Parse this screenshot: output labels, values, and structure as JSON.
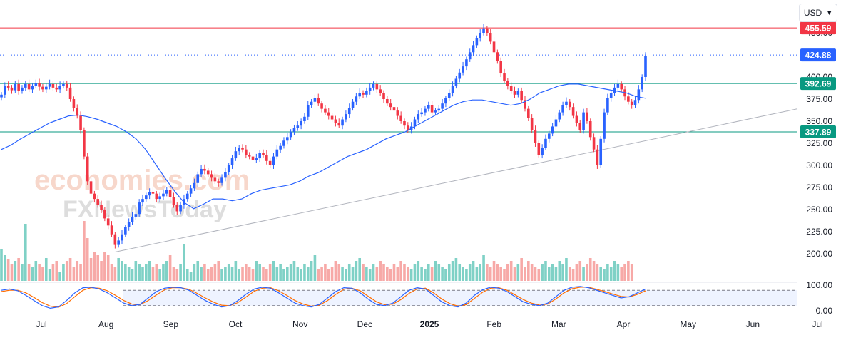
{
  "currency_selector": {
    "label": "USD"
  },
  "watermark": {
    "line1": "economies.com",
    "line2": "FXNewsToday"
  },
  "chart_data": [
    {
      "type": "candlestick",
      "y_ticks": [
        "200.00",
        "225.00",
        "250.00",
        "275.00",
        "300.00",
        "325.00",
        "350.00",
        "375.00",
        "400.00",
        "425.00",
        "450.00"
      ],
      "ylim": [
        175,
        470
      ],
      "x_ticks": [
        {
          "label": "Jul",
          "bold": false
        },
        {
          "label": "Aug",
          "bold": false
        },
        {
          "label": "Sep",
          "bold": false
        },
        {
          "label": "Oct",
          "bold": false
        },
        {
          "label": "Nov",
          "bold": false
        },
        {
          "label": "Dec",
          "bold": false
        },
        {
          "label": "2025",
          "bold": true
        },
        {
          "label": "Feb",
          "bold": false
        },
        {
          "label": "Mar",
          "bold": false
        },
        {
          "label": "Apr",
          "bold": false
        },
        {
          "label": "May",
          "bold": false
        },
        {
          "label": "Jun",
          "bold": false
        },
        {
          "label": "Jul",
          "bold": false
        }
      ],
      "price_levels": [
        {
          "label": "455.59",
          "value": 455.59,
          "color": "#f23645",
          "style": "solid"
        },
        {
          "label": "424.88",
          "value": 424.88,
          "color": "#2962ff",
          "style": "dotted"
        },
        {
          "label": "392.69",
          "value": 392.69,
          "color": "#089981",
          "style": "solid"
        },
        {
          "label": "337.89",
          "value": 337.89,
          "color": "#089981",
          "style": "solid"
        }
      ],
      "close_series": [
        380,
        390,
        388,
        385,
        392,
        384,
        388,
        392,
        386,
        390,
        393,
        389,
        386,
        389,
        392,
        388,
        386,
        390,
        392,
        388,
        375,
        365,
        356,
        340,
        310,
        282,
        268,
        262,
        255,
        250,
        240,
        232,
        222,
        210,
        215,
        222,
        230,
        236,
        242,
        245,
        258,
        262,
        266,
        270,
        268,
        262,
        265,
        268,
        272,
        264,
        255,
        248,
        255,
        262,
        268,
        274,
        280,
        290,
        296,
        294,
        290,
        286,
        282,
        280,
        286,
        292,
        300,
        308,
        316,
        320,
        318,
        312,
        310,
        306,
        308,
        314,
        312,
        305,
        300,
        310,
        318,
        322,
        328,
        332,
        338,
        342,
        345,
        350,
        355,
        368,
        372,
        376,
        370,
        364,
        360,
        356,
        352,
        348,
        345,
        352,
        358,
        365,
        372,
        378,
        382,
        380,
        384,
        388,
        392,
        386,
        382,
        375,
        370,
        366,
        362,
        356,
        350,
        345,
        340,
        344,
        352,
        358,
        360,
        364,
        368,
        360,
        362,
        364,
        370,
        376,
        382,
        390,
        398,
        405,
        412,
        420,
        428,
        436,
        444,
        450,
        455,
        450,
        440,
        428,
        418,
        404,
        396,
        390,
        384,
        380,
        384,
        374,
        364,
        354,
        340,
        325,
        312,
        320,
        330,
        336,
        344,
        352,
        360,
        368,
        372,
        366,
        356,
        348,
        340,
        360,
        350,
        332,
        318,
        300,
        330,
        360,
        376,
        382,
        388,
        392,
        386,
        378,
        372,
        368,
        374,
        386,
        400,
        424
      ],
      "ma_series": [
        318,
        323,
        330,
        336,
        342,
        348,
        352,
        356,
        357,
        355,
        352,
        348,
        344,
        338,
        330,
        318,
        302,
        286,
        271,
        258,
        251,
        256,
        262,
        262,
        260,
        262,
        268,
        272,
        274,
        276,
        278,
        282,
        288,
        292,
        298,
        304,
        310,
        314,
        318,
        324,
        330,
        334,
        338,
        344,
        350,
        356,
        362,
        368,
        372,
        374,
        374,
        372,
        370,
        368,
        370,
        375,
        382,
        386,
        390,
        392,
        392,
        390,
        388,
        386,
        384,
        382,
        378,
        376
      ],
      "volume_series": [
        22,
        18,
        15,
        12,
        14,
        16,
        12,
        40,
        12,
        10,
        14,
        12,
        10,
        16,
        8,
        12,
        14,
        6,
        12,
        14,
        16,
        10,
        14,
        12,
        42,
        30,
        16,
        20,
        18,
        14,
        20,
        18,
        12,
        10,
        16,
        14,
        12,
        10,
        8,
        14,
        12,
        10,
        12,
        14,
        10,
        12,
        8,
        12,
        14,
        18,
        10,
        8,
        12,
        26,
        8,
        6,
        12,
        14,
        10,
        12,
        8,
        10,
        12,
        14,
        8,
        10,
        12,
        10,
        14,
        8,
        10,
        12,
        10,
        8,
        14,
        12,
        10,
        8,
        12,
        14,
        10,
        12,
        8,
        10,
        12,
        14,
        10,
        8,
        12,
        10,
        14,
        18,
        8,
        10,
        12,
        8,
        10,
        14,
        12,
        10,
        8,
        12,
        10,
        14,
        16,
        12,
        10,
        8,
        12,
        10,
        14,
        12,
        10,
        8,
        12,
        10,
        14,
        12,
        10,
        8,
        12,
        14,
        10,
        8,
        12,
        10,
        14,
        12,
        10,
        8,
        12,
        14,
        16,
        12,
        10,
        8,
        12,
        14,
        10,
        12,
        18,
        12,
        10,
        14,
        12,
        10,
        8,
        12,
        14,
        10,
        12,
        16,
        10,
        14,
        12,
        10,
        8,
        12,
        14,
        10,
        12,
        10,
        14,
        12,
        16,
        10,
        8,
        12,
        14,
        10,
        12,
        16,
        14,
        12,
        10,
        8,
        12,
        10,
        14,
        12,
        10,
        12,
        14,
        12
      ]
    },
    {
      "type": "line",
      "name_hidden": true,
      "y_ticks": [
        "100.00",
        "0.00"
      ],
      "ylim": [
        0,
        100
      ],
      "k_series": [
        80,
        85,
        78,
        60,
        40,
        20,
        10,
        15,
        40,
        70,
        90,
        92,
        85,
        70,
        50,
        30,
        20,
        25,
        50,
        75,
        88,
        92,
        90,
        80,
        60,
        40,
        25,
        15,
        20,
        40,
        65,
        85,
        92,
        88,
        70,
        50,
        30,
        20,
        15,
        25,
        50,
        75,
        90,
        88,
        70,
        45,
        25,
        20,
        30,
        55,
        80,
        90,
        85,
        60,
        35,
        20,
        15,
        30,
        60,
        82,
        92,
        88,
        75,
        55,
        35,
        25,
        20,
        30,
        55,
        80,
        92,
        95,
        90,
        80,
        70,
        60,
        50,
        55,
        70,
        85
      ],
      "d_series": [
        75,
        80,
        80,
        70,
        52,
        32,
        18,
        14,
        28,
        55,
        80,
        90,
        88,
        78,
        60,
        40,
        26,
        24,
        40,
        62,
        82,
        90,
        90,
        84,
        68,
        50,
        34,
        22,
        20,
        32,
        54,
        76,
        88,
        90,
        78,
        60,
        40,
        26,
        18,
        22,
        40,
        64,
        84,
        88,
        78,
        56,
        35,
        24,
        26,
        44,
        68,
        85,
        88,
        70,
        46,
        28,
        18,
        24,
        48,
        72,
        88,
        90,
        80,
        62,
        44,
        30,
        22,
        26,
        46,
        70,
        86,
        92,
        92,
        84,
        75,
        65,
        56,
        54,
        64,
        78
      ],
      "colors": {
        "k": "#2962ff",
        "d": "#ff6d00"
      }
    }
  ],
  "colors": {
    "up": "#2962ff",
    "down": "#f23645",
    "ma": "#2962ff",
    "trendline": "#b2b5be",
    "vol_up": "#7fd1c6",
    "vol_down": "#f7a9a7"
  }
}
